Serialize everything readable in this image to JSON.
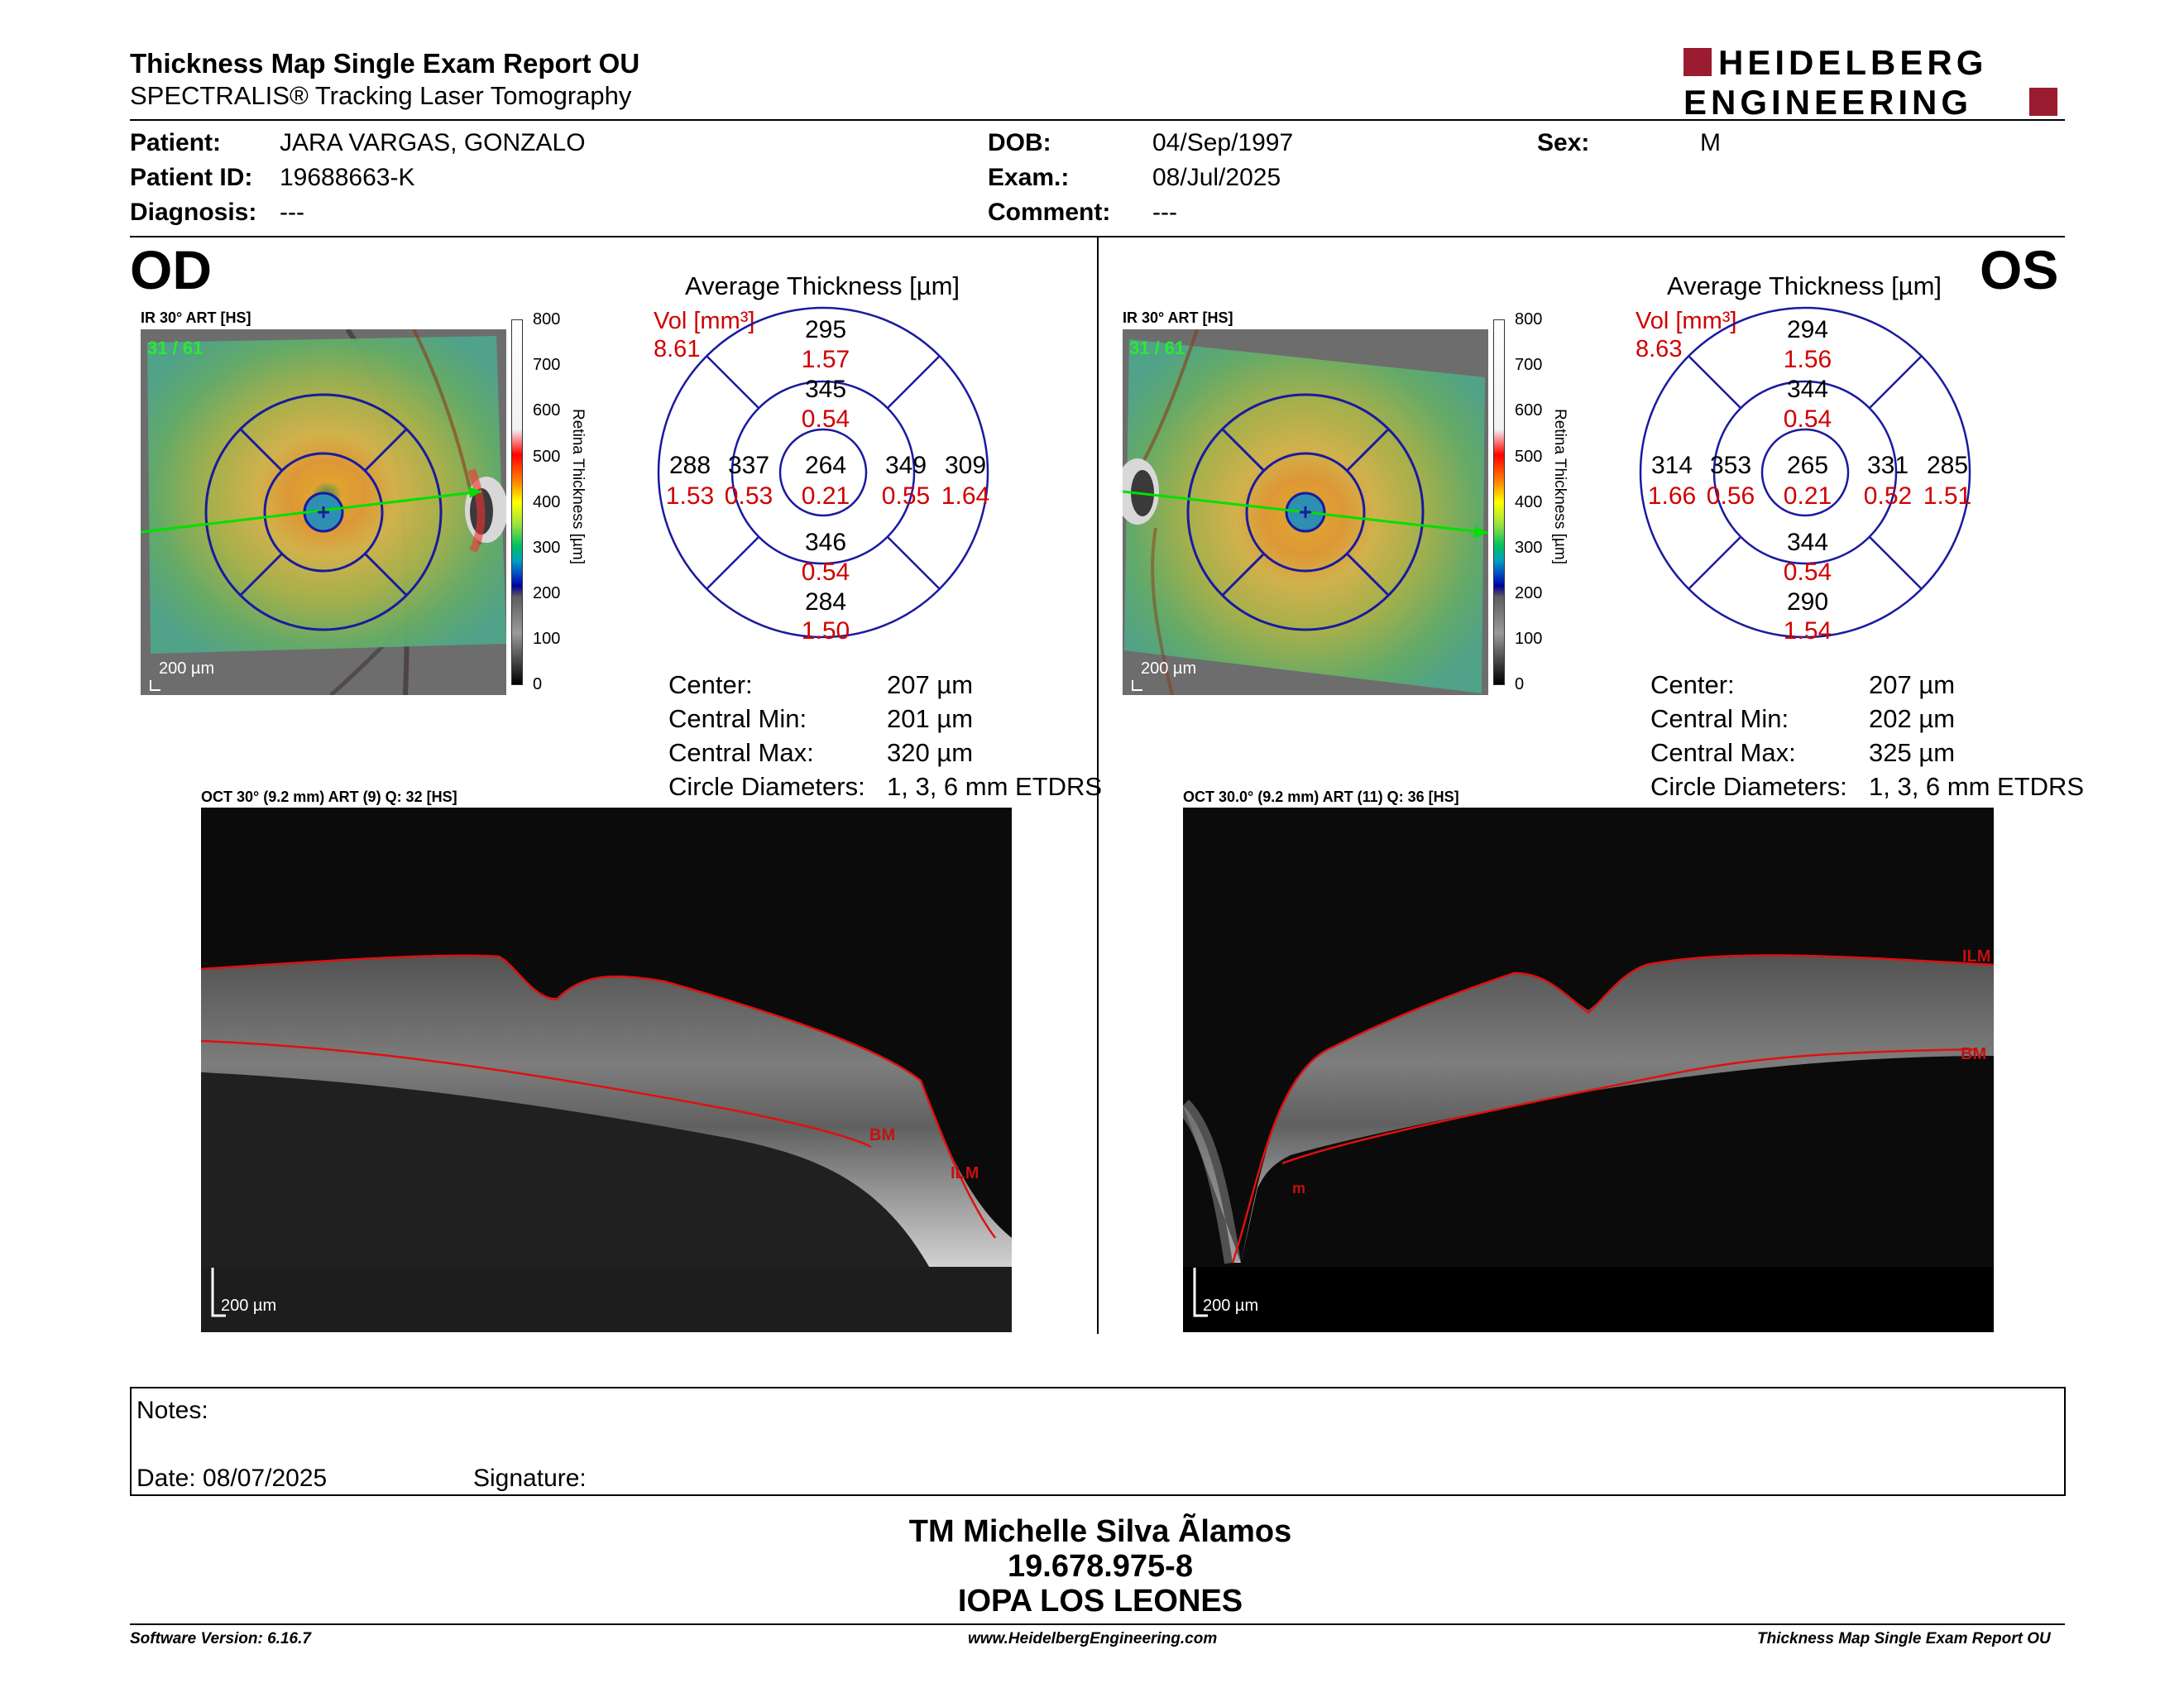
{
  "header": {
    "title": "Thickness Map Single Exam Report OU",
    "subtitle": "SPECTRALIS® Tracking Laser Tomography",
    "logo_line1": "HEIDELBERG",
    "logo_line2": "ENGINEERING",
    "brand_color": "#9b1b30"
  },
  "patient": {
    "patient_label": "Patient:",
    "patient_value": "JARA VARGAS, GONZALO",
    "id_label": "Patient ID:",
    "id_value": "19688663-K",
    "diagnosis_label": "Diagnosis:",
    "diagnosis_value": "---",
    "dob_label": "DOB:",
    "dob_value": "04/Sep/1997",
    "exam_label": "Exam.:",
    "exam_value": "08/Jul/2025",
    "comment_label": "Comment:",
    "comment_value": "---",
    "sex_label": "Sex:",
    "sex_value": "M"
  },
  "od": {
    "eye": "OD",
    "ir_label": "IR 30° ART [HS]",
    "frames": "31 / 61",
    "scale": "200 µm",
    "colorbar_ticks": [
      "800",
      "700",
      "600",
      "500",
      "400",
      "300",
      "200",
      "100",
      "0"
    ],
    "colorbar_title": "Retina  Thickness [µm]",
    "etdrs_title": "Average Thickness [µm]",
    "vol_label": "Vol [mm³]",
    "vol_value": "8.61",
    "sectors": {
      "outer_superior": {
        "t": "295",
        "v": "1.57"
      },
      "inner_superior": {
        "t": "345",
        "v": "0.54"
      },
      "outer_left": {
        "t": "288",
        "v": "1.53"
      },
      "inner_left": {
        "t": "337",
        "v": "0.53"
      },
      "center": {
        "t": "264",
        "v": "0.21"
      },
      "inner_right": {
        "t": "349",
        "v": "0.55"
      },
      "outer_right": {
        "t": "309",
        "v": "1.64"
      },
      "inner_inferior": {
        "t": "346",
        "v": "0.54"
      },
      "outer_inferior": {
        "t": "284",
        "v": "1.50"
      }
    },
    "stats": [
      {
        "label": "Center:",
        "value": "207 µm"
      },
      {
        "label": "Central Min:",
        "value": "201 µm"
      },
      {
        "label": "Central Max:",
        "value": "320 µm"
      },
      {
        "label": "Circle Diameters:",
        "value": "1, 3, 6 mm ETDRS"
      }
    ],
    "oct_label": "OCT 30° (9.2 mm) ART (9) Q: 32 [HS]",
    "oct_scale": "200 µm",
    "ilm": "ILM",
    "bm": "BM"
  },
  "os": {
    "eye": "OS",
    "ir_label": "IR 30° ART [HS]",
    "frames": "31 / 61",
    "scale": "200 µm",
    "colorbar_ticks": [
      "800",
      "700",
      "600",
      "500",
      "400",
      "300",
      "200",
      "100",
      "0"
    ],
    "colorbar_title": "Retina  Thickness [µm]",
    "etdrs_title": "Average Thickness [µm]",
    "vol_label": "Vol [mm³]",
    "vol_value": "8.63",
    "sectors": {
      "outer_superior": {
        "t": "294",
        "v": "1.56"
      },
      "inner_superior": {
        "t": "344",
        "v": "0.54"
      },
      "outer_left": {
        "t": "314",
        "v": "1.66"
      },
      "inner_left": {
        "t": "353",
        "v": "0.56"
      },
      "center": {
        "t": "265",
        "v": "0.21"
      },
      "inner_right": {
        "t": "331",
        "v": "0.52"
      },
      "outer_right": {
        "t": "285",
        "v": "1.51"
      },
      "inner_inferior": {
        "t": "344",
        "v": "0.54"
      },
      "outer_inferior": {
        "t": "290",
        "v": "1.54"
      }
    },
    "stats": [
      {
        "label": "Center:",
        "value": "207 µm"
      },
      {
        "label": "Central Min:",
        "value": "202 µm"
      },
      {
        "label": "Central Max:",
        "value": "325 µm"
      },
      {
        "label": "Circle Diameters:",
        "value": "1, 3, 6 mm ETDRS"
      }
    ],
    "oct_label": "OCT 30.0° (9.2 mm) ART (11) Q: 36 [HS]",
    "oct_scale": "200 µm",
    "ilm": "ILM",
    "bm": "BM",
    "extra_mark": "m"
  },
  "notes": {
    "notes_label": "Notes:",
    "date_label": "Date: 08/07/2025",
    "signature_label": "Signature:"
  },
  "signature": {
    "line1": "TM Michelle Silva Ãlamos",
    "line2": "19.678.975-8",
    "line3": "IOPA LOS LEONES"
  },
  "footer": {
    "left": "Software Version: 6.16.7",
    "center": "www.HeidelbergEngineering.com",
    "right": "Thickness Map Single Exam Report OU"
  }
}
